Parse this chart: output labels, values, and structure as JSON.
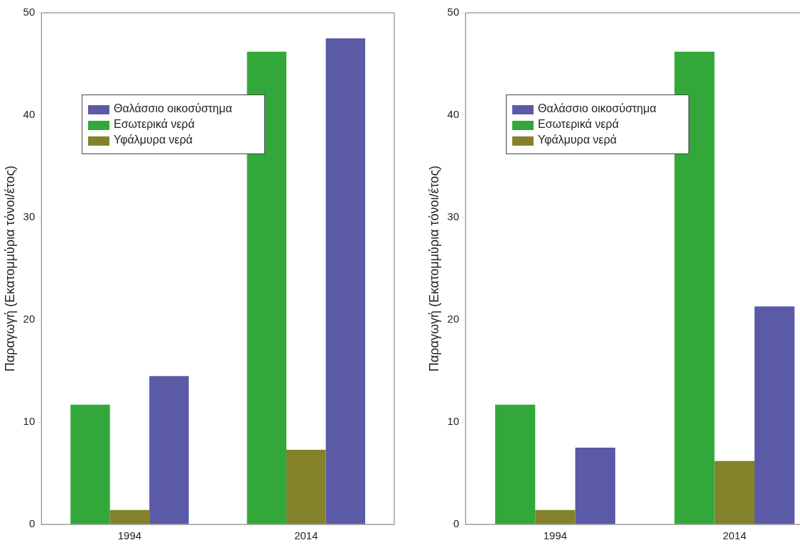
{
  "chart_data": [
    {
      "type": "bar",
      "ylabel": "Παραγωγή (Εκατομμύρια τόνοι/έτος)",
      "categories": [
        "1994",
        "2014"
      ],
      "series": [
        {
          "name": "Εσωτερικά νερά",
          "color": "#33a83a",
          "values": [
            11.7,
            46.2
          ]
        },
        {
          "name": "Υφάλμυρα νερά",
          "color": "#83822a",
          "values": [
            1.4,
            7.3
          ]
        },
        {
          "name": "Θαλάσσιο οικοσύστημα",
          "color": "#5a5aa6",
          "values": [
            14.5,
            47.5
          ]
        }
      ],
      "ylim": [
        0,
        50
      ],
      "yticks": [
        0,
        10,
        20,
        30,
        40,
        50
      ],
      "grid": false,
      "legend": "top left"
    },
    {
      "type": "bar",
      "ylabel": "Παραγωγή (Εκατομμύρια τόνοι/έτος)",
      "categories": [
        "1994",
        "2014"
      ],
      "series": [
        {
          "name": "Εσωτερικά νερά",
          "color": "#33a83a",
          "values": [
            11.7,
            46.2
          ]
        },
        {
          "name": "Υφάλμυρα νερά",
          "color": "#83822a",
          "values": [
            1.4,
            6.2
          ]
        },
        {
          "name": "Θαλάσσιο οικοσύστημα",
          "color": "#5a5aa6",
          "values": [
            7.5,
            21.3
          ]
        }
      ],
      "ylim": [
        0,
        50
      ],
      "yticks": [
        0,
        10,
        20,
        30,
        40,
        50
      ],
      "grid": false,
      "legend": "top left"
    }
  ]
}
